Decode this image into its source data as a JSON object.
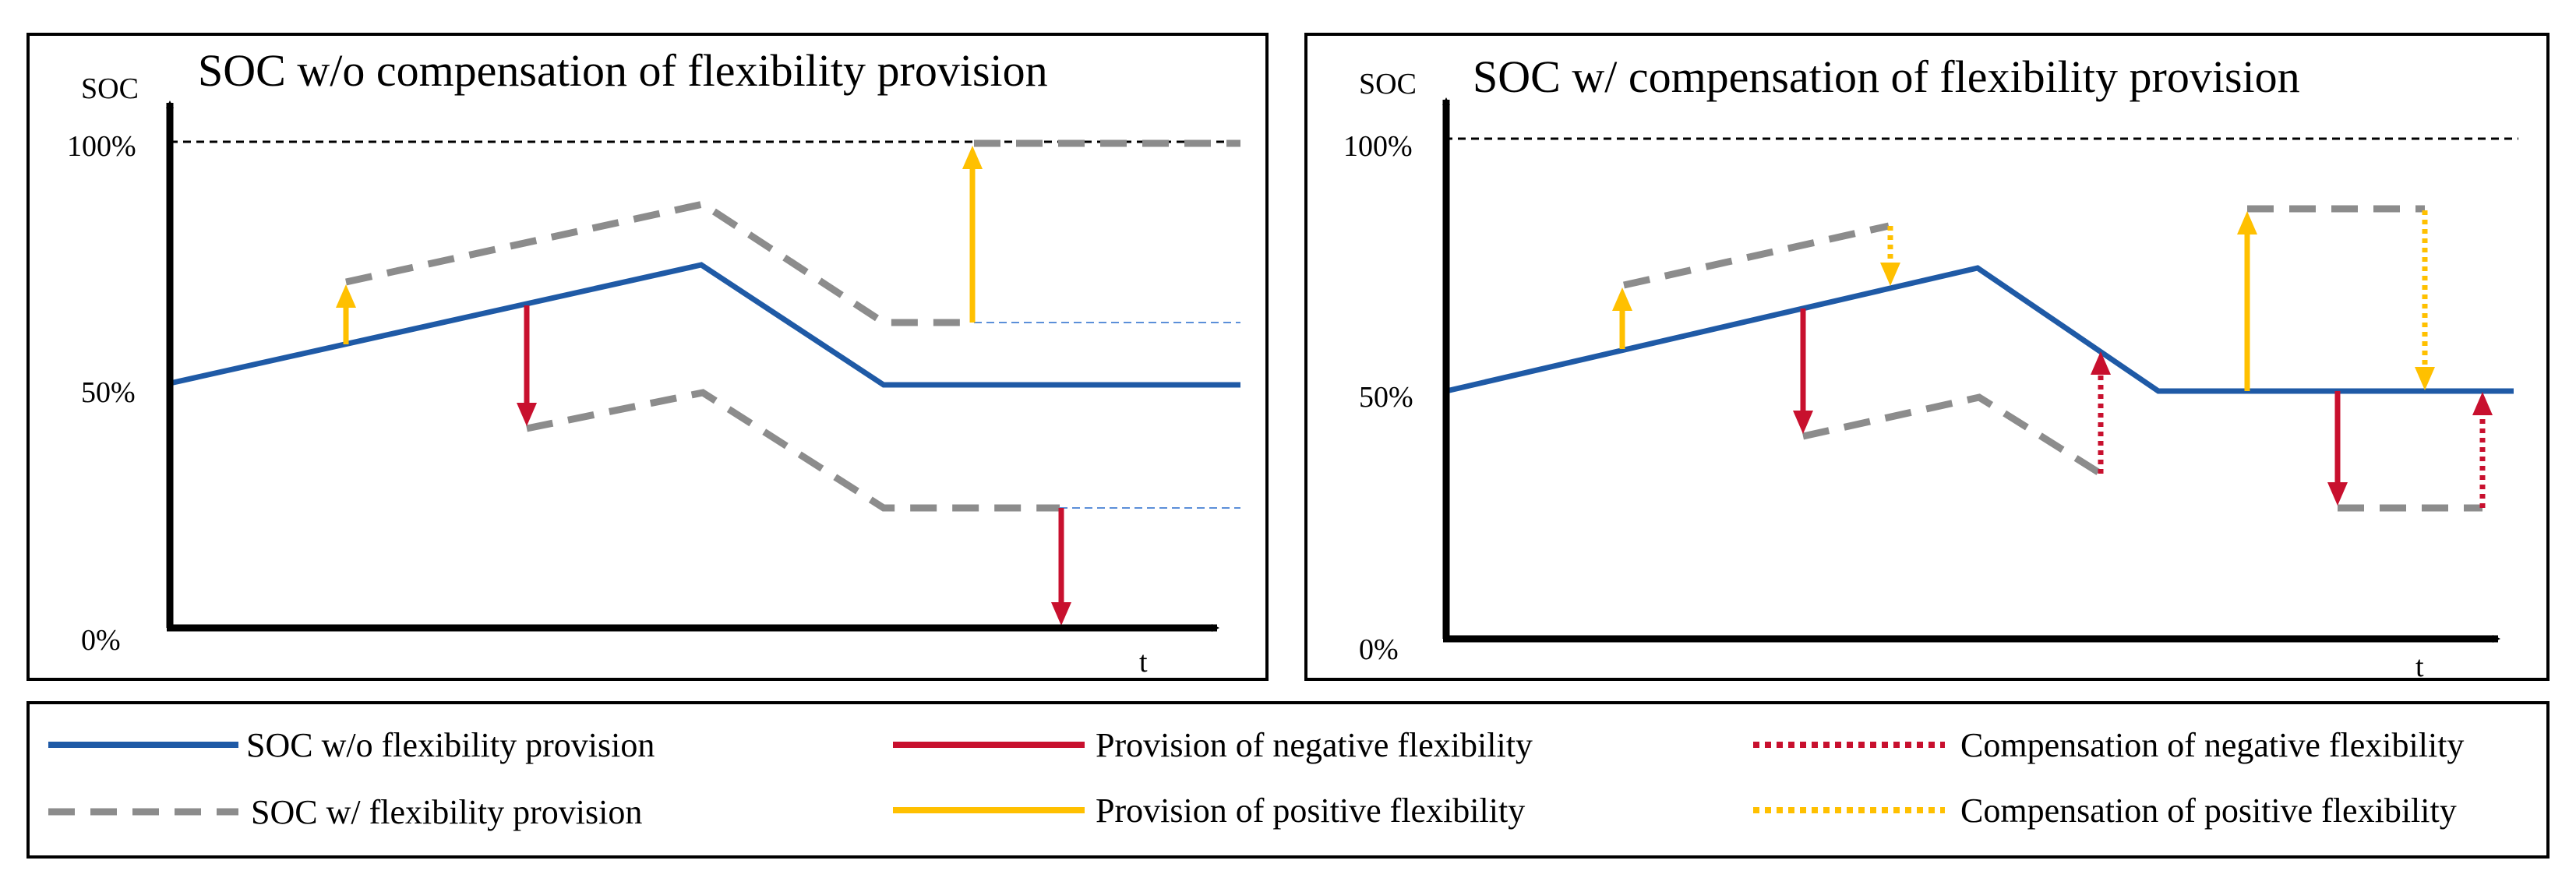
{
  "colors": {
    "soc_line": "#1f5aa6",
    "flex_dashed": "#8c8c8c",
    "negative": "#c8102e",
    "positive": "#ffc000",
    "helper": "#5b8fd9",
    "border": "#000000"
  },
  "panels": [
    {
      "title": "SOC w/o compensation of flexibility provision",
      "y_axis_label": "SOC",
      "x_axis_label": "t",
      "tick_labels": [
        "100%",
        "50%",
        "0%"
      ]
    },
    {
      "title": "SOC w/ compensation of flexibility provision",
      "y_axis_label": "SOC",
      "x_axis_label": "t",
      "tick_labels": [
        "100%",
        "50%",
        "0%"
      ]
    }
  ],
  "legend": {
    "soc_wo": "SOC w/o flexibility provision",
    "soc_w": "SOC w/ flexibility provision",
    "prov_neg": "Provision of negative flexibility",
    "prov_pos": "Provision of positive flexibility",
    "comp_neg": "Compensation of negative flexibility",
    "comp_pos": "Compensation of positive flexibility"
  }
}
